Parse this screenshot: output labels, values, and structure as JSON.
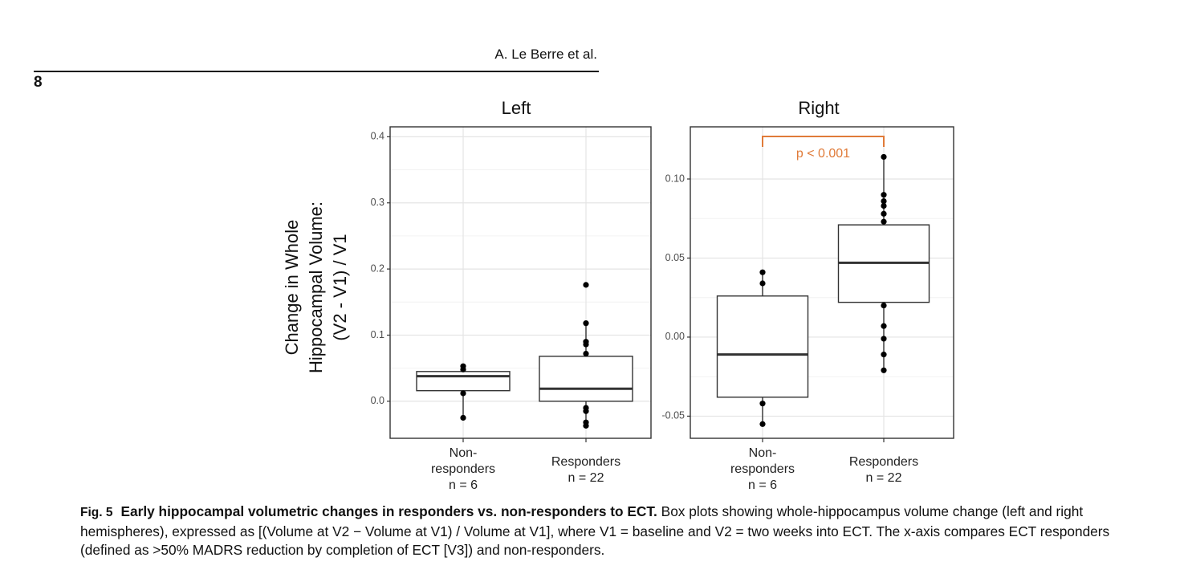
{
  "header": {
    "author": "A. Le Berre et al.",
    "page_number": "8"
  },
  "chart_data": {
    "type": "box",
    "ylabel_lines": [
      "Change in Whole",
      "Hippocampal Volume:",
      "(V2 - V1) / V1"
    ],
    "categories": [
      {
        "lines": [
          "Non-",
          "responders",
          "n = 6"
        ]
      },
      {
        "lines": [
          "Responders",
          "n = 22"
        ]
      }
    ],
    "panels": [
      {
        "title": "Left",
        "ylim": [
          -0.056,
          0.415
        ],
        "yticks": [
          0.0,
          0.1,
          0.2,
          0.3,
          0.4
        ],
        "ytick_labels": [
          "0.0",
          "0.1",
          "0.2",
          "0.3",
          "0.4"
        ],
        "groups": [
          {
            "category": "Non-responders",
            "q1": 0.016,
            "median": 0.038,
            "q3": 0.045,
            "whisker_low": -0.025,
            "whisker_high": 0.053,
            "points": [
              0.053,
              0.048,
              0.012,
              -0.025
            ]
          },
          {
            "category": "Responders",
            "q1": 0.0,
            "median": 0.019,
            "q3": 0.068,
            "whisker_low": -0.037,
            "whisker_high": 0.118,
            "points": [
              0.176,
              0.118,
              0.09,
              0.086,
              0.072,
              -0.01,
              -0.015,
              -0.032,
              -0.037
            ]
          }
        ]
      },
      {
        "title": "Right",
        "ylim": [
          -0.064,
          0.133
        ],
        "yticks": [
          -0.05,
          0.0,
          0.05,
          0.1
        ],
        "ytick_labels": [
          "-0.05",
          "0.00",
          "0.05",
          "0.10"
        ],
        "groups": [
          {
            "category": "Non-responders",
            "q1": -0.038,
            "median": -0.011,
            "q3": 0.026,
            "whisker_low": -0.055,
            "whisker_high": 0.041,
            "points": [
              0.041,
              0.034,
              -0.042,
              -0.055
            ]
          },
          {
            "category": "Responders",
            "q1": 0.022,
            "median": 0.047,
            "q3": 0.071,
            "whisker_low": -0.021,
            "whisker_high": 0.114,
            "points": [
              0.114,
              0.09,
              0.086,
              0.083,
              0.078,
              0.073,
              0.02,
              0.007,
              -0.001,
              -0.011,
              -0.021
            ]
          }
        ],
        "annotation": {
          "text": "p < 0.001",
          "color": "#e07b39"
        }
      }
    ]
  },
  "caption": {
    "label": "Fig. 5",
    "title": "Early hippocampal volumetric changes in responders vs. non-responders to ECT.",
    "text": "Box plots showing whole-hippocampus volume change (left and right hemispheres), expressed as [(Volume at V2 − Volume at V1) / Volume at V1], where V1 = baseline and V2 = two weeks into ECT. The x-axis compares ECT responders (defined as >50% MADRS reduction by completion of ECT [V3]) and non-responders."
  }
}
